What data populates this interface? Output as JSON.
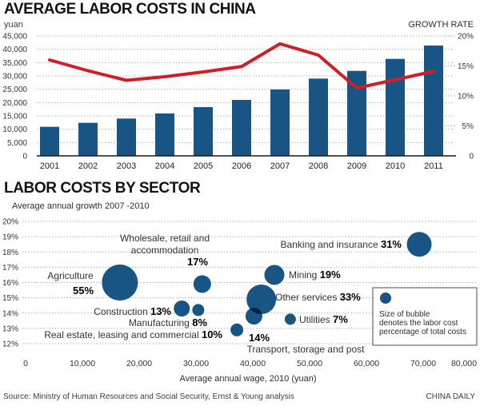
{
  "header": {
    "title": "AVERAGE LABOR COSTS IN CHINA",
    "left_axis_label": "yuan",
    "right_axis_label": "GROWTH RATE"
  },
  "section2": {
    "title": "LABOR COSTS BY SECTOR",
    "subtitle": "Average annual growth 2007 -2010"
  },
  "footer": {
    "source": "Source: Ministry of Human Resources and Social Security, Ernst & Young analysis",
    "credit": "CHINA DAILY"
  },
  "colors": {
    "bar_blue": "#185584",
    "line_red": "#cf1f26",
    "grid_gray": "#a0a0a0",
    "axis_black": "#1a1a1a",
    "text_gray": "#333333"
  },
  "chart_data": [
    {
      "type": "bar",
      "title": "AVERAGE LABOR COSTS IN CHINA",
      "ylabel": "yuan",
      "y2label": "GROWTH RATE",
      "categories": [
        "2001",
        "2002",
        "2003",
        "2004",
        "2005",
        "2006",
        "2007",
        "2008",
        "2009",
        "2010",
        "2011"
      ],
      "series": [
        {
          "name": "Average labor cost (yuan)",
          "type": "bar",
          "values": [
            10900,
            12400,
            14000,
            15900,
            18300,
            21000,
            24900,
            29000,
            31900,
            36400,
            41400
          ]
        },
        {
          "name": "Growth rate (%)",
          "type": "line",
          "values": [
            16.0,
            14.2,
            12.6,
            13.2,
            14.0,
            14.9,
            18.7,
            16.8,
            11.3,
            12.7,
            14.1
          ]
        }
      ],
      "left_axis": {
        "range": [
          0,
          45000
        ],
        "ticks": [
          "45,000",
          "40,000",
          "35,000",
          "30,000",
          "25,000",
          "20,000",
          "15,000",
          "10,000",
          "5,000",
          "0"
        ]
      },
      "right_axis": {
        "range": [
          0,
          20
        ],
        "ticks": [
          "20%",
          "15%",
          "10%",
          "5%",
          "0"
        ]
      },
      "grid": "dotted horizontal every 5,000 yuan"
    },
    {
      "type": "scatter",
      "title": "LABOR COSTS BY SECTOR",
      "subtitle": "Average annual growth 2007 -2010",
      "xlabel": "Average annual wage, 2010 (yuan)",
      "xlim": [
        0,
        80000
      ],
      "ylim_growth_pct": [
        12,
        20
      ],
      "x_ticks": [
        "0",
        "10,000",
        "20,000",
        "30,000",
        "40,000",
        "50,000",
        "60,000",
        "70,000",
        "80,000"
      ],
      "y_ticks": [
        "20%",
        "19%",
        "18%",
        "17%",
        "16%",
        "15%",
        "14%",
        "13%",
        "12%"
      ],
      "points": [
        {
          "id": "agriculture",
          "label": "Agriculture",
          "pct_label": "55%",
          "labor_cost_share_pct": 55,
          "avg_wage_2010": 16600,
          "annual_growth_pct": 16.0
        },
        {
          "id": "wholesale",
          "label": "Wholesale, retail and accommodation",
          "label_lines": [
            "Wholesale, retail and",
            "accommodation"
          ],
          "pct_label": "17%",
          "labor_cost_share_pct": 17,
          "avg_wage_2010": 31100,
          "annual_growth_pct": 15.9
        },
        {
          "id": "construction",
          "label": "Construction",
          "pct_label": "13%",
          "labor_cost_share_pct": 13,
          "avg_wage_2010": 27500,
          "annual_growth_pct": 14.3
        },
        {
          "id": "manufacturing",
          "label": "Manufacturing",
          "pct_label": "8%",
          "labor_cost_share_pct": 8,
          "avg_wage_2010": 30400,
          "annual_growth_pct": 14.2
        },
        {
          "id": "realestate",
          "label": "Real estate, leasing and commercial",
          "pct_label": "10%",
          "labor_cost_share_pct": 10,
          "avg_wage_2010": 37200,
          "annual_growth_pct": 12.9
        },
        {
          "id": "transport",
          "label": "Transport, storage and post",
          "pct_label": "14%",
          "labor_cost_share_pct": 14,
          "avg_wage_2010": 40200,
          "annual_growth_pct": 13.8
        },
        {
          "id": "otherservices",
          "label": "Other services",
          "pct_label": "33%",
          "labor_cost_share_pct": 33,
          "avg_wage_2010": 41500,
          "annual_growth_pct": 14.9
        },
        {
          "id": "mining",
          "label": "Mining",
          "pct_label": "19%",
          "labor_cost_share_pct": 19,
          "avg_wage_2010": 43800,
          "annual_growth_pct": 16.5
        },
        {
          "id": "utilities",
          "label": "Utilities",
          "pct_label": "7%",
          "labor_cost_share_pct": 7,
          "avg_wage_2010": 46600,
          "annual_growth_pct": 13.6
        },
        {
          "id": "banking",
          "label": "Banking and insurance",
          "pct_label": "31%",
          "labor_cost_share_pct": 31,
          "avg_wage_2010": 69300,
          "annual_growth_pct": 18.5
        }
      ],
      "legend": {
        "lines": [
          "Size of bubble",
          "denotes the labor cost",
          "percentage of total costs"
        ]
      }
    }
  ]
}
